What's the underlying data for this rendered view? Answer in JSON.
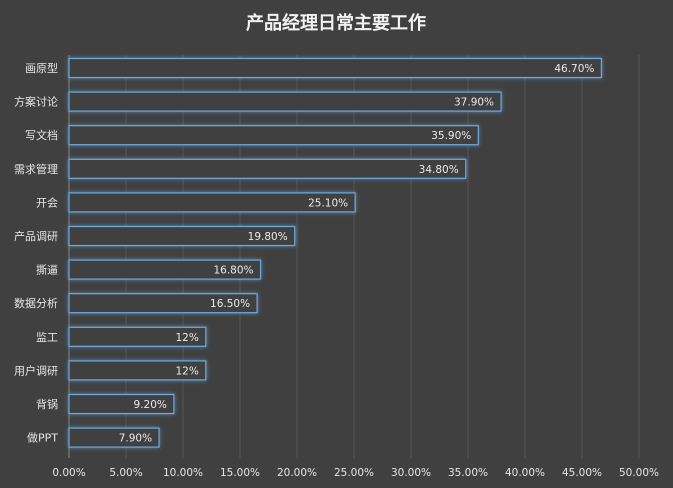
{
  "chart_data": {
    "type": "bar",
    "orientation": "horizontal",
    "title": "产品经理日常主要工作",
    "categories": [
      "画原型",
      "方案讨论",
      "写文档",
      "需求管理",
      "开会",
      "产品调研",
      "撕逼",
      "数据分析",
      "监工",
      "用户调研",
      "背锅",
      "做PPT"
    ],
    "values": [
      46.7,
      37.9,
      35.9,
      34.8,
      25.1,
      19.8,
      16.8,
      16.5,
      12,
      12,
      9.2,
      7.9
    ],
    "data_labels": [
      "46.70%",
      "37.90%",
      "35.90%",
      "34.80%",
      "25.10%",
      "19.80%",
      "16.80%",
      "16.50%",
      "12%",
      "12%",
      "9.20%",
      "7.90%"
    ],
    "x_ticks": [
      "0.00%",
      "5.00%",
      "10.00%",
      "15.00%",
      "20.00%",
      "25.00%",
      "30.00%",
      "35.00%",
      "40.00%",
      "45.00%",
      "50.00%"
    ],
    "xlim": [
      0,
      50
    ],
    "grid": true,
    "xlabel": "",
    "ylabel": ""
  },
  "colors": {
    "background": "#404040",
    "bar_outline": "#6fa8dc",
    "text": "#e6e6e6"
  }
}
